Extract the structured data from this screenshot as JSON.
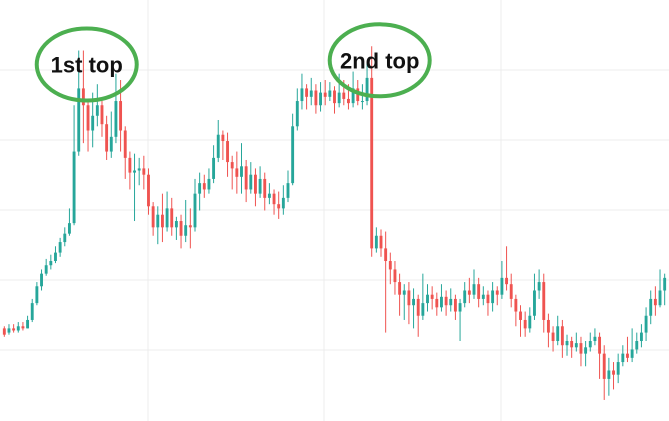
{
  "chart_data": {
    "type": "candlestick",
    "annotations": [
      {
        "label": "1st top",
        "candle_index": 16
      },
      {
        "label": "2nd top",
        "candle_index": 79
      }
    ],
    "colors": {
      "up": "#26a69a",
      "down": "#ef5350",
      "annotation": "#4caf50"
    },
    "grid": true,
    "ohlc": [
      [
        44,
        41,
        45,
        40
      ],
      [
        42,
        44,
        46,
        41
      ],
      [
        44,
        43,
        46,
        42
      ],
      [
        43,
        45,
        47,
        42
      ],
      [
        45,
        44,
        47,
        43
      ],
      [
        44,
        48,
        50,
        44
      ],
      [
        48,
        56,
        58,
        47
      ],
      [
        56,
        64,
        66,
        55
      ],
      [
        64,
        70,
        72,
        62
      ],
      [
        70,
        74,
        77,
        69
      ],
      [
        74,
        76,
        79,
        72
      ],
      [
        76,
        80,
        83,
        75
      ],
      [
        80,
        85,
        87,
        78
      ],
      [
        85,
        89,
        92,
        83
      ],
      [
        89,
        94,
        101,
        88
      ],
      [
        94,
        128,
        150,
        93
      ],
      [
        128,
        158,
        176,
        126
      ],
      [
        158,
        150,
        176,
        132
      ],
      [
        150,
        138,
        153,
        128
      ],
      [
        138,
        145,
        156,
        130
      ],
      [
        145,
        150,
        160,
        140
      ],
      [
        150,
        141,
        152,
        135
      ],
      [
        141,
        128,
        145,
        124
      ],
      [
        128,
        135,
        147,
        125
      ],
      [
        135,
        152,
        165,
        132
      ],
      [
        152,
        138,
        162,
        128
      ],
      [
        138,
        125,
        140,
        115
      ],
      [
        125,
        118,
        128,
        110
      ],
      [
        118,
        119,
        127,
        95
      ],
      [
        119,
        120,
        125,
        112
      ],
      [
        120,
        117,
        126,
        110
      ],
      [
        117,
        102,
        120,
        98
      ],
      [
        102,
        92,
        104,
        88
      ],
      [
        92,
        98,
        102,
        84
      ],
      [
        98,
        92,
        108,
        85
      ],
      [
        92,
        101,
        109,
        90
      ],
      [
        101,
        92,
        106,
        88
      ],
      [
        92,
        95,
        97,
        86
      ],
      [
        95,
        88,
        98,
        82
      ],
      [
        88,
        93,
        105,
        85
      ],
      [
        93,
        92,
        101,
        82
      ],
      [
        92,
        108,
        115,
        90
      ],
      [
        108,
        113,
        118,
        100
      ],
      [
        113,
        110,
        117,
        106
      ],
      [
        110,
        115,
        120,
        108
      ],
      [
        115,
        125,
        131,
        113
      ],
      [
        125,
        136,
        143,
        123
      ],
      [
        136,
        133,
        138,
        124
      ],
      [
        133,
        123,
        137,
        116
      ],
      [
        123,
        120,
        126,
        110
      ],
      [
        120,
        116,
        128,
        108
      ],
      [
        116,
        121,
        132,
        108
      ],
      [
        121,
        110,
        124,
        104
      ],
      [
        110,
        117,
        123,
        108
      ],
      [
        117,
        108,
        120,
        102
      ],
      [
        108,
        115,
        121,
        106
      ],
      [
        115,
        106,
        118,
        100
      ],
      [
        106,
        108,
        113,
        103
      ],
      [
        108,
        103,
        110,
        98
      ],
      [
        103,
        101,
        109,
        96
      ],
      [
        101,
        106,
        112,
        98
      ],
      [
        106,
        113,
        119,
        104
      ],
      [
        113,
        140,
        146,
        112
      ],
      [
        140,
        152,
        158,
        138
      ],
      [
        152,
        158,
        165,
        148
      ],
      [
        158,
        154,
        160,
        148
      ],
      [
        154,
        157,
        163,
        150
      ],
      [
        157,
        150,
        160,
        146
      ],
      [
        150,
        156,
        161,
        147
      ],
      [
        156,
        154,
        162,
        150
      ],
      [
        154,
        157,
        161,
        152
      ],
      [
        157,
        151,
        159,
        146
      ],
      [
        151,
        156,
        165,
        149
      ],
      [
        156,
        153,
        162,
        150
      ],
      [
        153,
        151,
        160,
        148
      ],
      [
        151,
        158,
        166,
        149
      ],
      [
        158,
        152,
        162,
        150
      ],
      [
        152,
        152,
        160,
        148
      ],
      [
        152,
        163,
        170,
        150
      ],
      [
        163,
        82,
        178,
        78
      ],
      [
        82,
        88,
        92,
        80
      ],
      [
        88,
        82,
        91,
        78
      ],
      [
        82,
        76,
        90,
        42
      ],
      [
        76,
        72,
        80,
        65
      ],
      [
        72,
        66,
        76,
        60
      ],
      [
        66,
        60,
        70,
        50
      ],
      [
        60,
        62,
        65,
        48
      ],
      [
        62,
        55,
        66,
        46
      ],
      [
        55,
        58,
        63,
        44
      ],
      [
        58,
        50,
        60,
        40
      ],
      [
        50,
        56,
        70,
        48
      ],
      [
        56,
        60,
        65,
        52
      ],
      [
        60,
        58,
        64,
        53
      ],
      [
        58,
        54,
        61,
        50
      ],
      [
        54,
        59,
        65,
        52
      ],
      [
        59,
        55,
        62,
        50
      ],
      [
        55,
        58,
        63,
        52
      ],
      [
        58,
        52,
        60,
        48
      ],
      [
        52,
        56,
        58,
        38
      ],
      [
        56,
        62,
        66,
        54
      ],
      [
        62,
        60,
        68,
        56
      ],
      [
        60,
        65,
        72,
        58
      ],
      [
        65,
        58,
        68,
        54
      ],
      [
        58,
        60,
        64,
        55
      ],
      [
        60,
        56,
        62,
        50
      ],
      [
        56,
        62,
        66,
        52
      ],
      [
        62,
        60,
        64,
        55
      ],
      [
        60,
        68,
        76,
        58
      ],
      [
        68,
        65,
        83,
        62
      ],
      [
        65,
        58,
        70,
        54
      ],
      [
        58,
        52,
        60,
        45
      ],
      [
        52,
        48,
        55,
        40
      ],
      [
        48,
        44,
        52,
        40
      ],
      [
        44,
        50,
        54,
        42
      ],
      [
        50,
        62,
        70,
        48
      ],
      [
        62,
        66,
        72,
        58
      ],
      [
        66,
        48,
        70,
        42
      ],
      [
        48,
        42,
        51,
        35
      ],
      [
        42,
        38,
        45,
        33
      ],
      [
        38,
        45,
        50,
        36
      ],
      [
        45,
        36,
        48,
        30
      ],
      [
        36,
        38,
        41,
        31
      ],
      [
        38,
        35,
        40,
        30
      ],
      [
        35,
        37,
        42,
        33
      ],
      [
        37,
        32,
        40,
        26
      ],
      [
        32,
        35,
        38,
        26
      ],
      [
        35,
        38,
        42,
        33
      ],
      [
        38,
        40,
        44,
        36
      ],
      [
        40,
        32,
        42,
        20
      ],
      [
        32,
        20,
        36,
        10
      ],
      [
        20,
        24,
        30,
        12
      ],
      [
        24,
        22,
        28,
        15
      ],
      [
        22,
        28,
        32,
        18
      ],
      [
        28,
        32,
        36,
        26
      ],
      [
        32,
        30,
        40,
        28
      ],
      [
        30,
        34,
        44,
        28
      ],
      [
        34,
        38,
        42,
        32
      ],
      [
        38,
        42,
        46,
        35
      ],
      [
        42,
        50,
        54,
        38
      ],
      [
        50,
        58,
        62,
        46
      ],
      [
        58,
        55,
        64,
        50
      ],
      [
        55,
        62,
        72,
        54
      ],
      [
        62,
        68,
        70,
        55
      ]
    ]
  }
}
